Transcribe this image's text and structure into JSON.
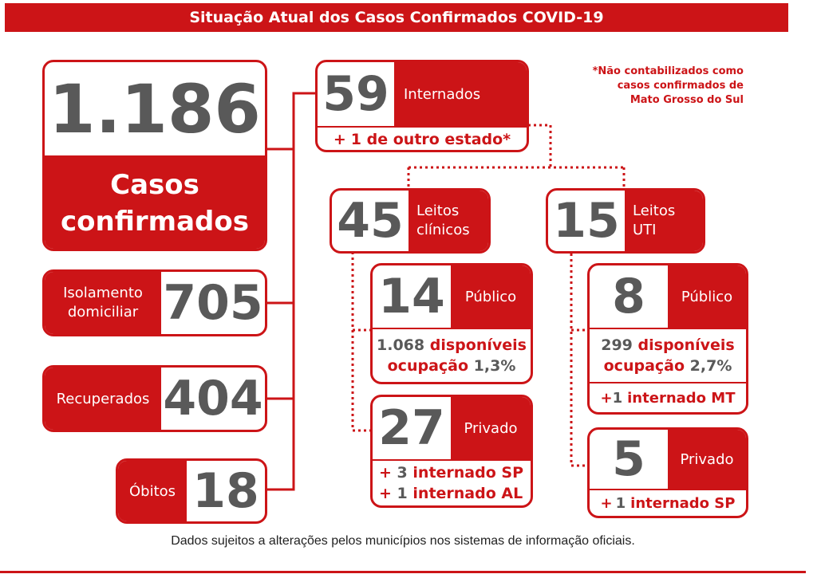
{
  "header": {
    "title": "Situação Atual dos Casos Confirmados COVID-19"
  },
  "note": {
    "line1": "*Não contabilizados como",
    "line2": "casos confirmados de",
    "line3": "Mato Grosso do Sul"
  },
  "confirmed": {
    "value": "1.186",
    "label1": "Casos",
    "label2": "confirmados"
  },
  "isolation": {
    "label1": "Isolamento",
    "label2": "domiciliar",
    "value": "705"
  },
  "recovered": {
    "label": "Recuperados",
    "value": "404"
  },
  "deaths": {
    "label": "Óbitos",
    "value": "18"
  },
  "hospitalized": {
    "value": "59",
    "label": "Internados",
    "plus": "+",
    "extra": "1 de outro estado*"
  },
  "clinical": {
    "value": "45",
    "label1": "Leitos",
    "label2": "clínicos"
  },
  "icu": {
    "value": "15",
    "label1": "Leitos",
    "label2": "UTI"
  },
  "clinical_public": {
    "value": "14",
    "label": "Público",
    "avail_num": "1.068",
    "avail_word": "disponíveis",
    "occ_word": "ocupação",
    "occ_val": "1,3%"
  },
  "clinical_private": {
    "value": "27",
    "label": "Privado",
    "plus": "+",
    "line1_num": "3",
    "line1_text": "internado SP",
    "line2_num": "1",
    "line2_text": "internado AL"
  },
  "icu_public": {
    "value": "8",
    "label": "Público",
    "avail_num": "299",
    "avail_word": "disponíveis",
    "occ_word": "ocupação",
    "occ_val": "2,7%",
    "plus": "+",
    "extra_num": "1",
    "extra_text": "internado MT"
  },
  "icu_private": {
    "value": "5",
    "label": "Privado",
    "plus": "+",
    "extra_num": "1",
    "extra_text": "internado SP"
  },
  "footer": {
    "disclaimer": "Dados sujeitos a alterações pelos municípios nos sistemas de informação oficiais."
  }
}
